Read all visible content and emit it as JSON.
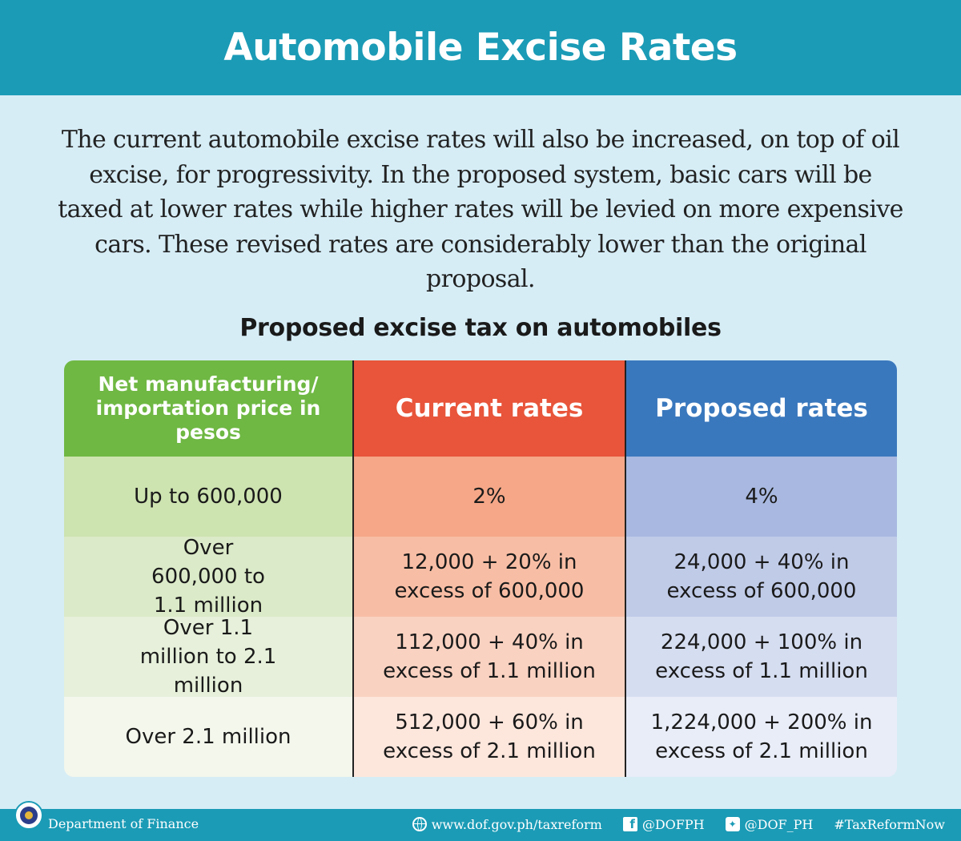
{
  "header": {
    "title": "Automobile Excise Rates"
  },
  "intro": {
    "text": "The current automobile excise rates will also be increased, on top of oil excise, for progressivity. In the proposed system, basic cars will be taxed at lower rates while higher rates will be levied on more expensive cars. These revised rates are considerably lower than the original proposal."
  },
  "table": {
    "title": "Proposed excise tax on automobiles",
    "columns": [
      "Net manufacturing/ importation price in pesos",
      "Current rates",
      "Proposed rates"
    ],
    "rows": [
      {
        "price": "Up to 600,000",
        "current": "2%",
        "proposed": "4%"
      },
      {
        "price": "Over 600,000 to 1.1 million",
        "current": "12,000 + 20% in excess of 600,000",
        "proposed": "24,000 + 40% in excess of 600,000"
      },
      {
        "price": "Over 1.1 million to 2.1 million",
        "current": "112,000 + 40% in excess of 1.1 million",
        "proposed": "224,000 + 100% in excess of 1.1 million"
      },
      {
        "price": "Over 2.1 million",
        "current": "512,000 + 60% in excess of 2.1 million",
        "proposed": "1,224,000 + 200% in excess of 2.1 million"
      }
    ]
  },
  "footer": {
    "department": "Department of Finance",
    "website": "www.dof.gov.ph/taxreform",
    "facebook": "@DOFPH",
    "twitter": "@DOF_PH",
    "hashtag": "#TaxReformNow",
    "icons": [
      "dof-seal-icon",
      "globe-icon",
      "facebook-icon",
      "twitter-icon"
    ]
  },
  "colors": {
    "brand_teal": "#1b9bb6",
    "background": "#d6edf6",
    "price_column": "#6fb843",
    "current_column": "#e8553a",
    "proposed_column": "#3a78bd"
  }
}
